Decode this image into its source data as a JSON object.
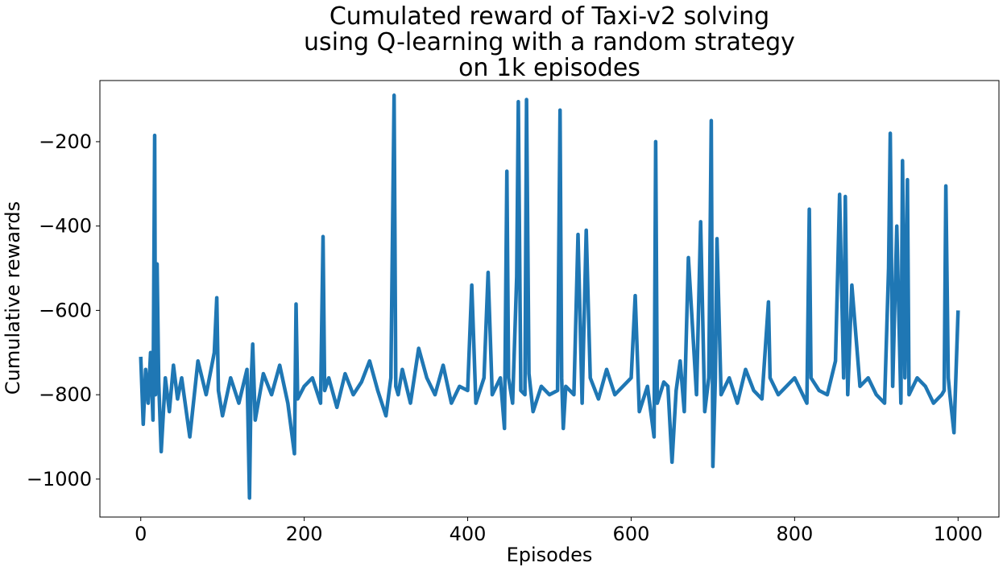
{
  "chart_data": {
    "type": "line",
    "title_lines": [
      "Cumulated reward of Taxi-v2 solving",
      "using Q-learning with a random strategy",
      "on 1k episodes"
    ],
    "xlabel": "Episodes",
    "ylabel": "Cumulative rewards",
    "xlim": [
      -50,
      1050
    ],
    "ylim": [
      -1090,
      -55
    ],
    "xticks": [
      0,
      200,
      400,
      600,
      800,
      1000
    ],
    "xtick_labels": [
      "0",
      "200",
      "400",
      "600",
      "800",
      "1000"
    ],
    "yticks": [
      -1000,
      -800,
      -600,
      -400,
      -200
    ],
    "ytick_labels": [
      "−1000",
      "−800",
      "−600",
      "−400",
      "−200"
    ],
    "grid": false,
    "series": [
      {
        "color": "#1f77b4",
        "x": [
          0,
          3,
          6,
          9,
          12,
          15,
          17,
          18,
          20,
          22,
          25,
          30,
          35,
          40,
          45,
          50,
          60,
          70,
          80,
          90,
          93,
          95,
          100,
          110,
          120,
          130,
          133,
          135,
          137,
          140,
          150,
          160,
          170,
          180,
          188,
          190,
          192,
          200,
          210,
          220,
          223,
          225,
          230,
          240,
          250,
          260,
          270,
          280,
          290,
          300,
          306,
          310,
          312,
          315,
          320,
          330,
          340,
          350,
          360,
          370,
          380,
          390,
          400,
          405,
          410,
          420,
          425,
          430,
          440,
          445,
          448,
          450,
          455,
          460,
          462,
          465,
          470,
          472,
          475,
          480,
          490,
          500,
          510,
          513,
          515,
          517,
          520,
          530,
          535,
          540,
          545,
          550,
          560,
          570,
          580,
          590,
          600,
          605,
          610,
          620,
          628,
          630,
          632,
          640,
          645,
          650,
          655,
          660,
          665,
          670,
          680,
          685,
          690,
          695,
          698,
          700,
          703,
          705,
          710,
          720,
          730,
          740,
          750,
          760,
          768,
          770,
          780,
          790,
          800,
          810,
          815,
          818,
          820,
          830,
          840,
          850,
          855,
          860,
          862,
          865,
          870,
          880,
          890,
          900,
          910,
          915,
          917,
          920,
          925,
          930,
          932,
          935,
          938,
          940,
          950,
          960,
          970,
          980,
          983,
          985,
          988,
          990,
          995,
          1000
        ],
        "y": [
          -710,
          -870,
          -740,
          -820,
          -700,
          -860,
          -185,
          -800,
          -490,
          -770,
          -935,
          -760,
          -840,
          -730,
          -810,
          -760,
          -900,
          -720,
          -800,
          -700,
          -570,
          -790,
          -850,
          -760,
          -820,
          -740,
          -1045,
          -770,
          -680,
          -860,
          -750,
          -800,
          -730,
          -820,
          -940,
          -585,
          -810,
          -780,
          -760,
          -820,
          -425,
          -790,
          -760,
          -830,
          -750,
          -800,
          -770,
          -720,
          -790,
          -850,
          -760,
          -90,
          -780,
          -800,
          -740,
          -820,
          -690,
          -760,
          -800,
          -730,
          -820,
          -780,
          -790,
          -540,
          -820,
          -760,
          -510,
          -800,
          -760,
          -880,
          -270,
          -760,
          -820,
          -520,
          -105,
          -790,
          -800,
          -100,
          -750,
          -840,
          -780,
          -800,
          -790,
          -125,
          -760,
          -880,
          -780,
          -800,
          -420,
          -820,
          -410,
          -760,
          -810,
          -740,
          -800,
          -780,
          -760,
          -565,
          -840,
          -780,
          -900,
          -200,
          -820,
          -770,
          -780,
          -960,
          -790,
          -720,
          -840,
          -475,
          -800,
          -390,
          -840,
          -760,
          -150,
          -970,
          -760,
          -430,
          -800,
          -760,
          -820,
          -740,
          -790,
          -810,
          -580,
          -760,
          -800,
          -780,
          -760,
          -800,
          -820,
          -360,
          -760,
          -790,
          -800,
          -720,
          -325,
          -760,
          -330,
          -800,
          -540,
          -780,
          -760,
          -800,
          -820,
          -500,
          -180,
          -780,
          -400,
          -820,
          -245,
          -760,
          -290,
          -800,
          -760,
          -780,
          -820,
          -800,
          -790,
          -305,
          -760,
          -800,
          -890,
          -600
        ]
      }
    ]
  }
}
